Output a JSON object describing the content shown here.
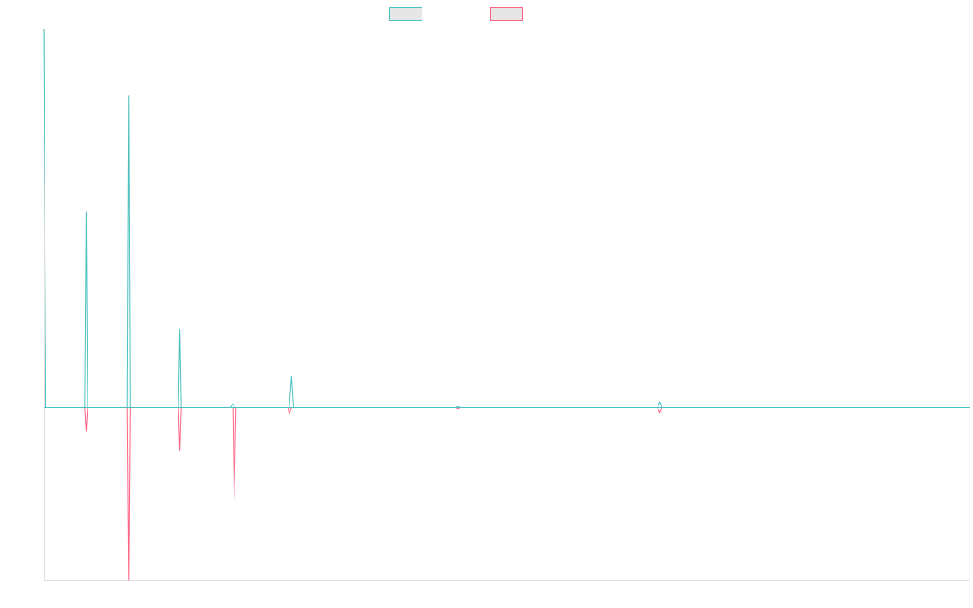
{
  "colors": {
    "series_a": "#4bc0c0",
    "series_b": "#ff6384",
    "legend_fill": "#e6e6e6",
    "axis": "#e0e0e0"
  },
  "chart_data": {
    "type": "line",
    "title": "",
    "xlabel": "",
    "ylabel": "",
    "grid": false,
    "legend_position": "top",
    "ylim": [
      -1.0,
      2.18
    ],
    "series": [
      {
        "values": [
          [
            0,
            2.18
          ],
          [
            0.05,
            0.0
          ],
          [
            0.97,
            0.0
          ],
          [
            1.0,
            1.13
          ],
          [
            1.03,
            0.0
          ],
          [
            1.1,
            0.0
          ],
          [
            1.97,
            0.0
          ],
          [
            2.0,
            1.8
          ],
          [
            2.03,
            0.0
          ],
          [
            3.17,
            0.0
          ],
          [
            3.2,
            0.45
          ],
          [
            3.23,
            0.0
          ],
          [
            4.4,
            0.0
          ],
          [
            4.45,
            0.02
          ],
          [
            4.5,
            0.0
          ],
          [
            5.78,
            0.0
          ],
          [
            5.83,
            0.18
          ],
          [
            5.87,
            0.0
          ],
          [
            9.7,
            0.0
          ],
          [
            9.75,
            0.005
          ],
          [
            9.8,
            0.0
          ],
          [
            14.45,
            0.0
          ],
          [
            14.5,
            0.03
          ],
          [
            14.55,
            0.0
          ],
          [
            21.8,
            0.0
          ]
        ]
      },
      {
        "values": [
          [
            0,
            0.0
          ],
          [
            0.97,
            0.0
          ],
          [
            1.0,
            -0.14
          ],
          [
            1.03,
            0.0
          ],
          [
            1.97,
            0.0
          ],
          [
            2.0,
            -1.0
          ],
          [
            2.03,
            0.0
          ],
          [
            3.17,
            0.0
          ],
          [
            3.2,
            -0.25
          ],
          [
            3.23,
            0.0
          ],
          [
            4.45,
            0.0
          ],
          [
            4.48,
            -0.53
          ],
          [
            4.52,
            0.0
          ],
          [
            5.75,
            0.0
          ],
          [
            5.78,
            -0.04
          ],
          [
            5.83,
            0.0
          ],
          [
            9.7,
            0.0
          ],
          [
            9.75,
            -0.005
          ],
          [
            9.8,
            0.0
          ],
          [
            14.45,
            0.0
          ],
          [
            14.5,
            -0.03
          ],
          [
            14.55,
            0.0
          ],
          [
            21.8,
            0.0
          ]
        ]
      }
    ]
  }
}
